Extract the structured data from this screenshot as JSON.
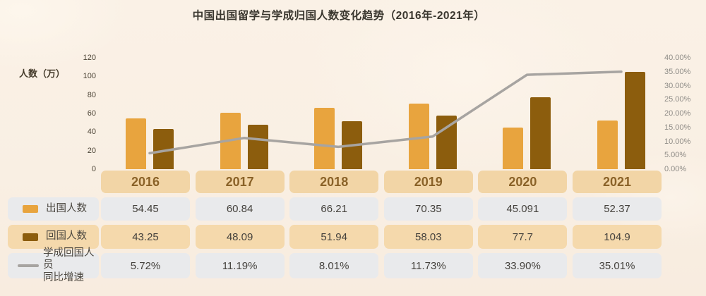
{
  "title": "中国出国留学与学成归国人数变化趋势（2016年-2021年）",
  "colors": {
    "abroad_bar": "#E8A43E",
    "return_bar": "#8C5D0D",
    "growth_line": "#A7A4A1",
    "year_cell_bg": "#F2D5A6",
    "year_cell_text": "#8A6228",
    "gray_cell_bg": "#E9EAEC",
    "tan_cell_bg": "#F5D9AC",
    "cell_text": "#45423D",
    "title_text": "#3A372F",
    "page_bg": "#F9EFE3"
  },
  "chart_data": {
    "type": "bar+line",
    "title": "中国出国留学与学成归国人数变化趋势（2016年-2021年）",
    "categories": [
      "2016",
      "2017",
      "2018",
      "2019",
      "2020",
      "2021"
    ],
    "series": [
      {
        "name": "出国人数",
        "type": "bar",
        "color": "#E8A43E",
        "values": [
          54.45,
          60.84,
          66.21,
          70.35,
          45.091,
          52.37
        ]
      },
      {
        "name": "回国人数",
        "type": "bar",
        "color": "#8C5D0D",
        "values": [
          43.25,
          48.09,
          51.94,
          58.03,
          77.7,
          104.9
        ]
      },
      {
        "name": "学成回国人员同比增速",
        "type": "line",
        "color": "#A7A4A1",
        "values_pct": [
          5.72,
          11.19,
          8.01,
          11.73,
          33.9,
          35.01
        ]
      }
    ],
    "left_axis": {
      "label": "人数（万）",
      "ticks": [
        120,
        100,
        80,
        60,
        40,
        20,
        0
      ],
      "range": [
        0,
        120
      ]
    },
    "right_axis": {
      "ticks": [
        "40.00%",
        "35.00%",
        "30.00%",
        "25.00%",
        "20.00%",
        "15.00%",
        "10.00%",
        "5.00%",
        "0.00%"
      ],
      "range": [
        0,
        40
      ]
    },
    "grid": false,
    "legend_position": "table-left"
  },
  "table": {
    "years": [
      "2016",
      "2017",
      "2018",
      "2019",
      "2020",
      "2021"
    ],
    "rows": [
      {
        "legend_lines": [
          "出国人数"
        ],
        "swatch": "bar-orange",
        "bg": "gray",
        "values": [
          "54.45",
          "60.84",
          "66.21",
          "70.35",
          "45.091",
          "52.37"
        ]
      },
      {
        "legend_lines": [
          "回国人数"
        ],
        "swatch": "bar-brown",
        "bg": "tan",
        "values": [
          "43.25",
          "48.09",
          "51.94",
          "58.03",
          "77.7",
          "104.9"
        ]
      },
      {
        "legend_lines": [
          "学成回国人员",
          "同比增速"
        ],
        "swatch": "line-gray",
        "bg": "gray",
        "values": [
          "5.72%",
          "11.19%",
          "8.01%",
          "11.73%",
          "33.90%",
          "35.01%"
        ]
      }
    ]
  }
}
